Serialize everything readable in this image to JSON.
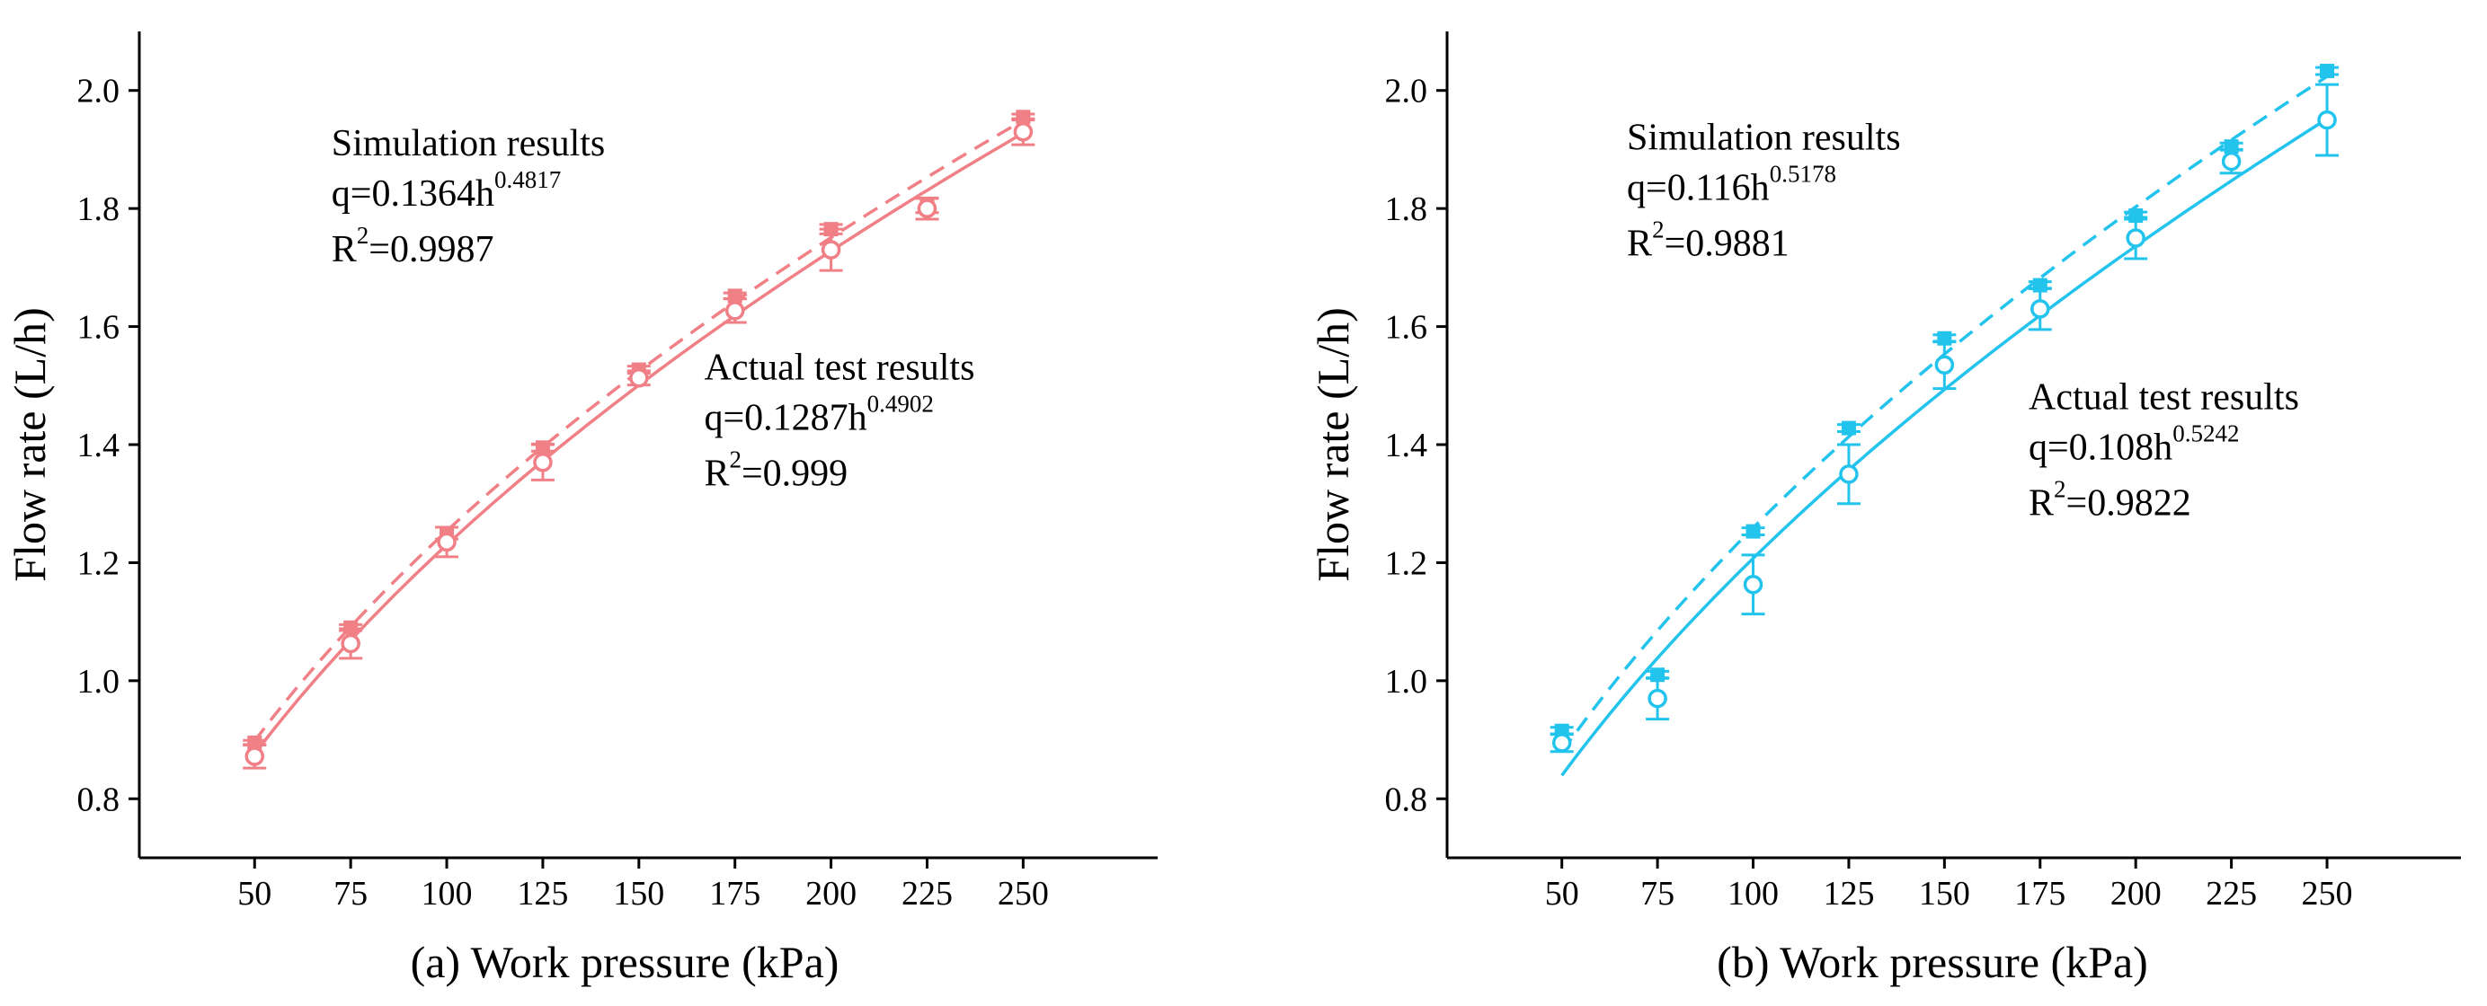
{
  "chart_data": [
    {
      "id": "a",
      "type": "line",
      "xlabel": "(a) Work pressure (kPa)",
      "ylabel": "Flow rate (L/h)",
      "xlim": [
        20,
        285
      ],
      "ylim": [
        0.7,
        2.1
      ],
      "x_ticks": [
        50,
        75,
        100,
        125,
        150,
        175,
        200,
        225,
        250
      ],
      "y_ticks": [
        0.8,
        1.0,
        1.2,
        1.4,
        1.6,
        1.8,
        2.0
      ],
      "y_tick_labels": [
        "0.8",
        "1.0",
        "1.2",
        "1.4",
        "1.6",
        "1.8",
        "2.0"
      ],
      "color": "#f07f86",
      "x": [
        50,
        75,
        100,
        125,
        150,
        175,
        200,
        225,
        250
      ],
      "series": [
        {
          "name": "Simulation results",
          "marker": "square",
          "values": [
            0.895,
            1.09,
            1.25,
            1.395,
            1.527,
            1.652,
            1.765,
            1.805,
            1.955
          ],
          "err": [
            0.004,
            0.005,
            0.01,
            0.006,
            0.006,
            0.005,
            0.008,
            0.012,
            0.005
          ],
          "fit": {
            "a": 0.1364,
            "b": 0.4817,
            "style": "dashed"
          }
        },
        {
          "name": "Actual test results",
          "marker": "circle",
          "values": [
            0.872,
            1.063,
            1.235,
            1.37,
            1.513,
            1.627,
            1.73,
            1.8,
            1.93
          ],
          "err": [
            0.02,
            0.025,
            0.025,
            0.03,
            0.012,
            0.02,
            0.035,
            0.018,
            0.022
          ],
          "fit": {
            "a": 0.1287,
            "b": 0.4902,
            "style": "solid"
          }
        }
      ],
      "annotations": [
        {
          "name": "simulation",
          "title": "Simulation results",
          "eq_prefix": "q=0.1364h",
          "eq_exp": "0.4817",
          "r2_prefix": "R",
          "r2_exp": "2",
          "r2_value": "=0.9987",
          "at": [
            70,
            1.89
          ]
        },
        {
          "name": "actual",
          "title": "Actual test results",
          "eq_prefix": "q=0.1287h",
          "eq_exp": "0.4902",
          "r2_prefix": "R",
          "r2_exp": "2",
          "r2_value": "=0.999",
          "at": [
            167,
            1.51
          ]
        }
      ]
    },
    {
      "id": "b",
      "type": "line",
      "xlabel": "(b) Work pressure (kPa)",
      "ylabel": "Flow rate (L/h)",
      "xlim": [
        20,
        285
      ],
      "ylim": [
        0.7,
        2.1
      ],
      "x_ticks": [
        50,
        75,
        100,
        125,
        150,
        175,
        200,
        225,
        250
      ],
      "y_ticks": [
        0.8,
        1.0,
        1.2,
        1.4,
        1.6,
        1.8,
        2.0
      ],
      "y_tick_labels": [
        "0.8",
        "1.0",
        "1.2",
        "1.4",
        "1.6",
        "1.8",
        "2.0"
      ],
      "color": "#22c4ee",
      "x": [
        50,
        75,
        100,
        125,
        150,
        175,
        200,
        225,
        250
      ],
      "series": [
        {
          "name": "Simulation results",
          "marker": "square",
          "values": [
            0.915,
            1.01,
            1.253,
            1.428,
            1.58,
            1.67,
            1.788,
            1.905,
            2.033
          ],
          "err": [
            0.006,
            0.006,
            0.006,
            0.006,
            0.006,
            0.006,
            0.006,
            0.006,
            0.006
          ],
          "fit": {
            "a": 0.116,
            "b": 0.5178,
            "style": "dashed"
          }
        },
        {
          "name": "Actual test results",
          "marker": "circle",
          "values": [
            0.895,
            0.97,
            1.163,
            1.35,
            1.535,
            1.63,
            1.75,
            1.88,
            1.95
          ],
          "err": [
            0.015,
            0.035,
            0.05,
            0.05,
            0.04,
            0.035,
            0.035,
            0.02,
            0.06
          ],
          "fit": {
            "a": 0.108,
            "b": 0.5242,
            "style": "solid"
          }
        }
      ],
      "annotations": [
        {
          "name": "simulation",
          "title": "Simulation results",
          "eq_prefix": "q=0.116h",
          "eq_exp": "0.5178",
          "r2_prefix": "R",
          "r2_exp": "2",
          "r2_value": "=0.9881",
          "at": [
            67,
            1.9
          ]
        },
        {
          "name": "actual",
          "title": "Actual test results",
          "eq_prefix": "q=0.108h",
          "eq_exp": "0.5242",
          "r2_prefix": "R",
          "r2_exp": "2",
          "r2_value": "=0.9822",
          "at": [
            172,
            1.46
          ]
        }
      ]
    }
  ]
}
